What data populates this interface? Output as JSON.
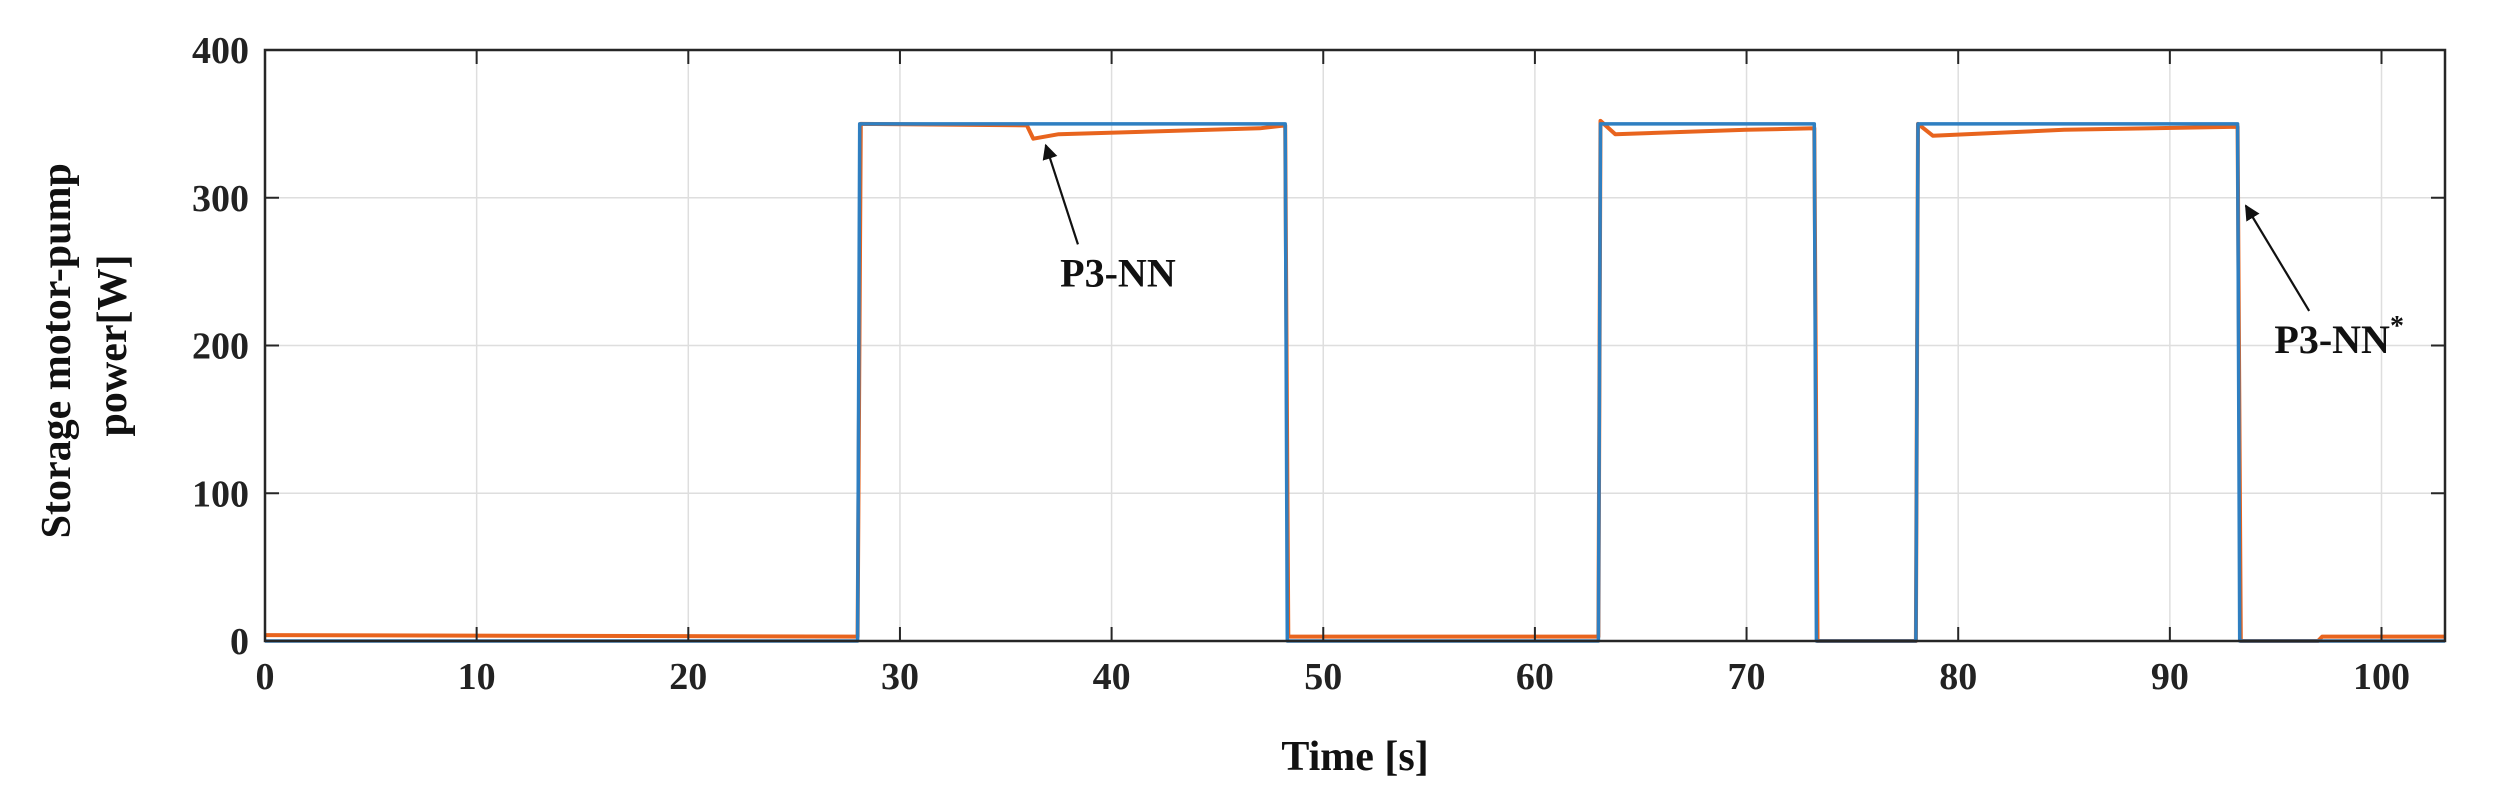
{
  "chart_data": {
    "type": "line",
    "xlabel": "Time [s]",
    "ylabel_lines": [
      "Storage motor-pump",
      "power[W]"
    ],
    "xlim": [
      0,
      103
    ],
    "ylim": [
      0,
      400
    ],
    "x_ticks": [
      0,
      10,
      20,
      30,
      40,
      50,
      60,
      70,
      80,
      90,
      100
    ],
    "y_ticks": [
      0,
      100,
      200,
      300,
      400
    ],
    "grid": true,
    "series": [
      {
        "color": "#e8641e",
        "points": [
          [
            0,
            4
          ],
          [
            28,
            3
          ],
          [
            28.15,
            350
          ],
          [
            36,
            349
          ],
          [
            36.3,
            340
          ],
          [
            37.5,
            343
          ],
          [
            47,
            347
          ],
          [
            48.2,
            349
          ],
          [
            48.35,
            3
          ],
          [
            63,
            3
          ],
          [
            63.1,
            352
          ],
          [
            63.8,
            343
          ],
          [
            70,
            346
          ],
          [
            73.2,
            347
          ],
          [
            73.35,
            0
          ],
          [
            78,
            0
          ],
          [
            78.1,
            350
          ],
          [
            78.8,
            342
          ],
          [
            85,
            346
          ],
          [
            93.2,
            348
          ],
          [
            93.35,
            0
          ],
          [
            97,
            0
          ],
          [
            97.2,
            3
          ],
          [
            103,
            3
          ]
        ]
      },
      {
        "color": "#2f7fc1",
        "points": [
          [
            0,
            0
          ],
          [
            28,
            0
          ],
          [
            28.1,
            350
          ],
          [
            48.2,
            350
          ],
          [
            48.3,
            0
          ],
          [
            63,
            0
          ],
          [
            63.1,
            350
          ],
          [
            73.2,
            350
          ],
          [
            73.3,
            0
          ],
          [
            78,
            0
          ],
          [
            78.1,
            350
          ],
          [
            93.2,
            350
          ],
          [
            93.3,
            0
          ],
          [
            103,
            0
          ]
        ]
      }
    ],
    "annotations": [
      {
        "label": "P3-NN",
        "superscript": "",
        "target": [
          36.7,
          341
        ],
        "text_at": [
          40.3,
          240
        ]
      },
      {
        "label": "P3-NN",
        "superscript": "*",
        "target": [
          93.4,
          300
        ],
        "text_at": [
          98,
          195
        ]
      }
    ]
  }
}
